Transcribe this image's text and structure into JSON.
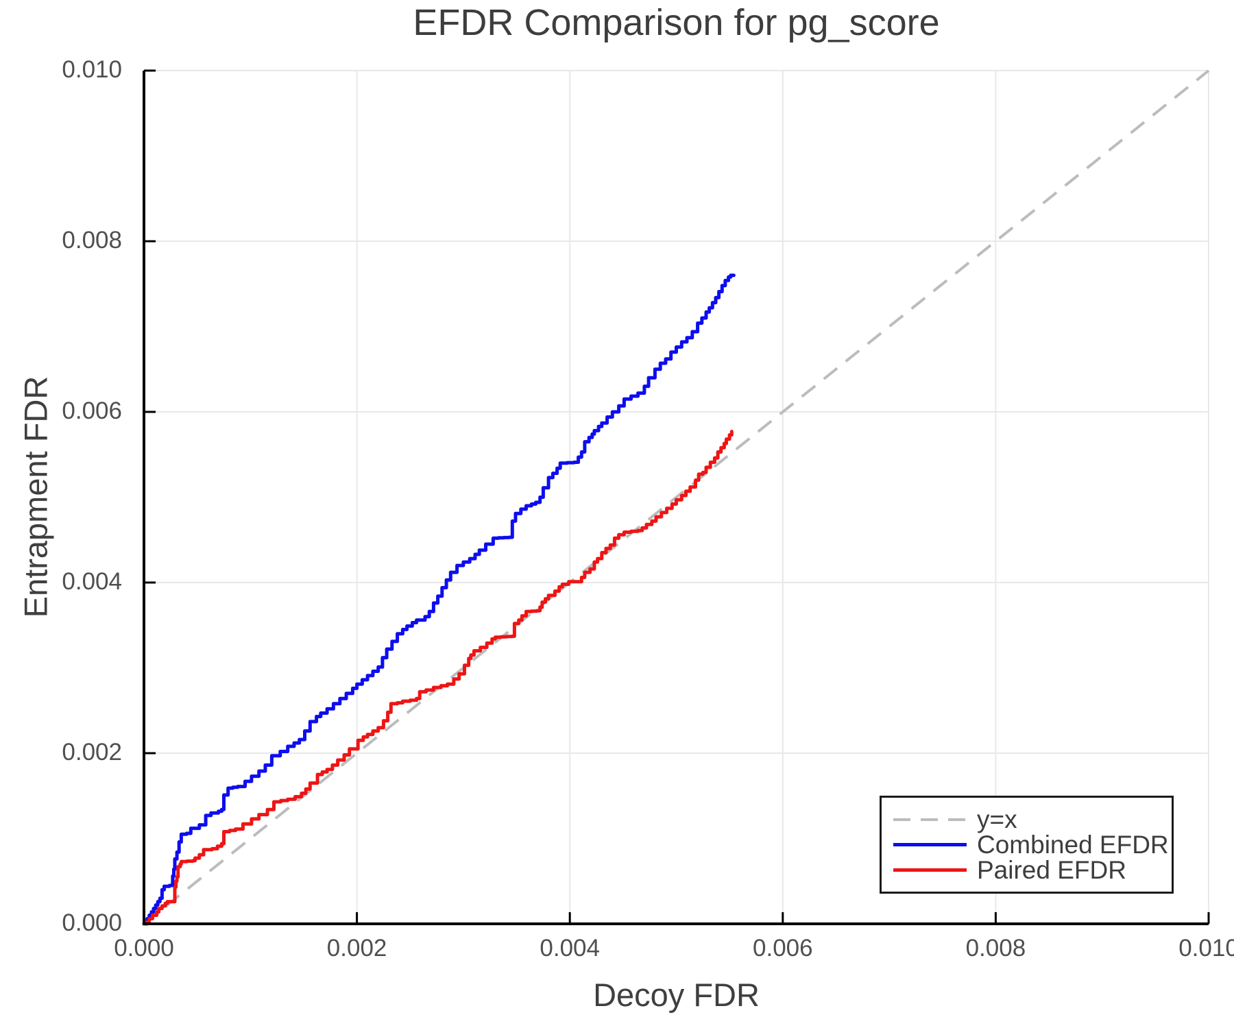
{
  "title": "EFDR Comparison for pg_score",
  "axes": {
    "xlabel": "Decoy FDR",
    "ylabel": "Entrapment FDR",
    "x_tick_labels": [
      "0.000",
      "0.002",
      "0.004",
      "0.006",
      "0.008",
      "0.010"
    ],
    "y_tick_labels": [
      "0.000",
      "0.002",
      "0.004",
      "0.006",
      "0.008",
      "0.010"
    ]
  },
  "legend": {
    "items": [
      {
        "label": "y=x",
        "color": "#bcbcbc",
        "style": "dashed"
      },
      {
        "label": "Combined EFDR",
        "color": "#0d0dee",
        "style": "solid"
      },
      {
        "label": "Paired EFDR",
        "color": "#ee1515",
        "style": "solid"
      }
    ]
  },
  "colors": {
    "grid": "#e8e8e8",
    "spine": "#000000",
    "diagonal": "#bcbcbc",
    "combined": "#0d0dee",
    "paired": "#ee1515",
    "title_text": "#3d3d3d",
    "tick_text": "#4f4f4f"
  },
  "chart_data": {
    "type": "line",
    "title": "EFDR Comparison for pg_score",
    "xlabel": "Decoy FDR",
    "ylabel": "Entrapment FDR",
    "xlim": [
      0.0,
      0.01
    ],
    "ylim": [
      0.0,
      0.01
    ],
    "x_ticks": [
      0.0,
      0.002,
      0.004,
      0.006,
      0.008,
      0.01
    ],
    "y_ticks": [
      0.0,
      0.002,
      0.004,
      0.006,
      0.008,
      0.01
    ],
    "grid": true,
    "legend_position": "lower right",
    "series": [
      {
        "name": "y=x",
        "style": "dashed",
        "color": "#bcbcbc",
        "x": [
          0.0,
          0.01
        ],
        "y": [
          0.0,
          0.01
        ]
      },
      {
        "name": "Combined EFDR",
        "style": "step",
        "color": "#0d0dee",
        "x": [
          0.0,
          3e-05,
          5e-05,
          7e-05,
          9e-05,
          0.00011,
          0.00013,
          0.00015,
          0.00017,
          0.00019,
          0.00024,
          0.00027,
          0.00028,
          0.00029,
          0.00031,
          0.00033,
          0.00035,
          0.0004,
          0.00044,
          0.00052,
          0.00058,
          0.00063,
          0.0007,
          0.00073,
          0.00075,
          0.00079,
          0.00088,
          0.00095,
          0.00101,
          0.00108,
          0.00114,
          0.0012,
          0.00128,
          0.00135,
          0.00141,
          0.00146,
          0.00151,
          0.00156,
          0.00162,
          0.00166,
          0.00172,
          0.00178,
          0.00184,
          0.0019,
          0.00196,
          0.002,
          0.00205,
          0.0021,
          0.00215,
          0.0022,
          0.00224,
          0.00228,
          0.00233,
          0.00238,
          0.00243,
          0.00247,
          0.00252,
          0.00256,
          0.00264,
          0.00268,
          0.00272,
          0.00276,
          0.0028,
          0.00284,
          0.00288,
          0.00294,
          0.003,
          0.00306,
          0.00311,
          0.00315,
          0.00321,
          0.00328,
          0.00343,
          0.00346,
          0.00349,
          0.00354,
          0.00359,
          0.00364,
          0.00368,
          0.00372,
          0.00375,
          0.0038,
          0.00384,
          0.00388,
          0.00391,
          0.00404,
          0.00408,
          0.00411,
          0.00414,
          0.00418,
          0.00421,
          0.00423,
          0.00427,
          0.0043,
          0.00435,
          0.0044,
          0.00446,
          0.00451,
          0.00464,
          0.0047,
          0.00474,
          0.0048,
          0.00485,
          0.0049,
          0.00495,
          0.005,
          0.00505,
          0.0051,
          0.00515,
          0.0052,
          0.00524,
          0.00528,
          0.00531,
          0.00534,
          0.00537,
          0.0054,
          0.00543,
          0.00546,
          0.00549,
          0.00551,
          0.00554
        ],
        "y": [
          0.0,
          6e-05,
          0.0001,
          0.00014,
          0.00018,
          0.00022,
          0.00026,
          0.0003,
          0.0004,
          0.00044,
          0.00045,
          0.00056,
          0.00064,
          0.00076,
          0.00084,
          0.00096,
          0.00105,
          0.00106,
          0.00112,
          0.00116,
          0.00127,
          0.0013,
          0.00132,
          0.00134,
          0.00151,
          0.00159,
          0.00161,
          0.00167,
          0.00173,
          0.00179,
          0.00186,
          0.00197,
          0.00202,
          0.00208,
          0.00212,
          0.00216,
          0.00226,
          0.00237,
          0.00243,
          0.00247,
          0.00252,
          0.00258,
          0.00264,
          0.0027,
          0.00276,
          0.00281,
          0.00286,
          0.00291,
          0.00296,
          0.00301,
          0.00312,
          0.00322,
          0.00331,
          0.0034,
          0.00345,
          0.00349,
          0.00353,
          0.00356,
          0.0036,
          0.00366,
          0.00376,
          0.00384,
          0.00394,
          0.00403,
          0.00412,
          0.0042,
          0.00424,
          0.00428,
          0.00433,
          0.00438,
          0.00445,
          0.00452,
          0.00453,
          0.00472,
          0.00481,
          0.00486,
          0.0049,
          0.00492,
          0.00494,
          0.005,
          0.00511,
          0.00523,
          0.00528,
          0.00534,
          0.0054,
          0.00541,
          0.00547,
          0.00553,
          0.00565,
          0.0057,
          0.00574,
          0.00578,
          0.00583,
          0.00587,
          0.00594,
          0.006,
          0.00607,
          0.00615,
          0.00622,
          0.0063,
          0.0064,
          0.0065,
          0.00657,
          0.00662,
          0.0067,
          0.00676,
          0.00682,
          0.00687,
          0.00694,
          0.00704,
          0.0071,
          0.00717,
          0.00722,
          0.00728,
          0.00734,
          0.00741,
          0.00748,
          0.00754,
          0.00758,
          0.0076,
          0.0076
        ]
      },
      {
        "name": "Paired EFDR",
        "style": "step",
        "color": "#ee1515",
        "x": [
          0.0,
          3e-05,
          5e-05,
          8e-05,
          0.00012,
          0.00014,
          0.00017,
          0.0002,
          0.00022,
          0.00028,
          0.00029,
          0.0003,
          0.00031,
          0.00032,
          0.00034,
          0.00035,
          0.00046,
          0.00048,
          0.00052,
          0.00056,
          0.00064,
          0.00069,
          0.00073,
          0.00075,
          0.00086,
          0.00093,
          0.00101,
          0.00108,
          0.00116,
          0.00122,
          0.00135,
          0.00142,
          0.00148,
          0.00152,
          0.00156,
          0.00163,
          0.00172,
          0.00177,
          0.00182,
          0.00188,
          0.00193,
          0.00201,
          0.00206,
          0.0021,
          0.00215,
          0.0022,
          0.00225,
          0.00229,
          0.00232,
          0.00238,
          0.00243,
          0.0025,
          0.00256,
          0.00259,
          0.00265,
          0.00272,
          0.00279,
          0.00285,
          0.00291,
          0.00296,
          0.00301,
          0.00305,
          0.00307,
          0.0031,
          0.00316,
          0.00322,
          0.00327,
          0.0033,
          0.00346,
          0.00348,
          0.00352,
          0.00355,
          0.00359,
          0.00369,
          0.00372,
          0.00374,
          0.00377,
          0.0038,
          0.00386,
          0.0039,
          0.00393,
          0.00399,
          0.00408,
          0.00411,
          0.00414,
          0.00419,
          0.00423,
          0.00426,
          0.0043,
          0.00434,
          0.00438,
          0.00442,
          0.00446,
          0.00451,
          0.00464,
          0.00468,
          0.00472,
          0.00477,
          0.00481,
          0.00486,
          0.00491,
          0.00496,
          0.005,
          0.00505,
          0.00509,
          0.00513,
          0.00518,
          0.00521,
          0.00525,
          0.00528,
          0.00532,
          0.00536,
          0.00539,
          0.00542,
          0.00545,
          0.00547,
          0.0055,
          0.00552
        ],
        "y": [
          0.0,
          2e-05,
          6e-05,
          0.0001,
          0.00014,
          0.00018,
          0.00021,
          0.00024,
          0.00026,
          0.00026,
          0.00043,
          0.0005,
          0.00055,
          0.00067,
          0.0007,
          0.00073,
          0.00074,
          0.00077,
          0.00081,
          0.00087,
          0.00088,
          0.00091,
          0.00094,
          0.00108,
          0.00111,
          0.00117,
          0.00123,
          0.00128,
          0.00134,
          0.00143,
          0.00146,
          0.00149,
          0.00153,
          0.00158,
          0.00165,
          0.00175,
          0.00181,
          0.00186,
          0.00192,
          0.00198,
          0.00205,
          0.00215,
          0.00219,
          0.00222,
          0.00226,
          0.0023,
          0.00238,
          0.00248,
          0.00258,
          0.00259,
          0.00261,
          0.00262,
          0.00264,
          0.00272,
          0.00274,
          0.00277,
          0.00279,
          0.00281,
          0.00287,
          0.00293,
          0.00303,
          0.00311,
          0.00315,
          0.0032,
          0.00324,
          0.00329,
          0.00334,
          0.00336,
          0.00337,
          0.00352,
          0.00356,
          0.00361,
          0.00366,
          0.00367,
          0.00371,
          0.00377,
          0.00381,
          0.00385,
          0.0039,
          0.00395,
          0.00398,
          0.00401,
          0.00401,
          0.00406,
          0.00412,
          0.00416,
          0.00424,
          0.00428,
          0.00435,
          0.0044,
          0.00444,
          0.00452,
          0.00456,
          0.00459,
          0.00461,
          0.00464,
          0.00468,
          0.00472,
          0.00477,
          0.00482,
          0.00487,
          0.00492,
          0.00497,
          0.00502,
          0.00507,
          0.00512,
          0.0052,
          0.00527,
          0.00529,
          0.00535,
          0.00541,
          0.00546,
          0.00553,
          0.00558,
          0.00563,
          0.00568,
          0.00573,
          0.00577
        ]
      }
    ]
  }
}
